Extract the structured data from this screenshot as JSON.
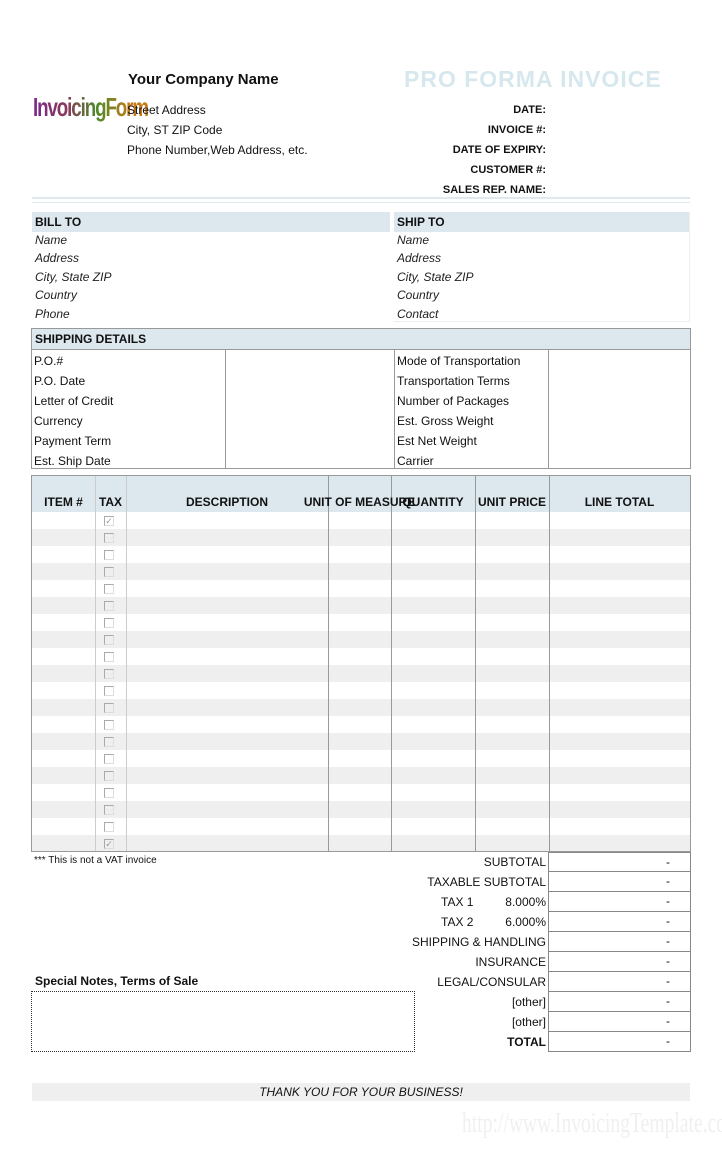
{
  "logo": {
    "text": "InvoicingForm"
  },
  "company": {
    "name": "Your Company Name",
    "street": "Street Address",
    "city": "City, ST  ZIP Code",
    "contact": "Phone Number,Web Address, etc."
  },
  "title": "PRO FORMA INVOICE",
  "meta_labels": [
    "DATE:",
    "INVOICE #:",
    "DATE OF EXPIRY:",
    "CUSTOMER #:",
    "SALES REP. NAME:"
  ],
  "bill_to": {
    "heading": "BILL TO",
    "lines": [
      "Name",
      "Address",
      "City, State ZIP",
      "Country",
      "Phone"
    ]
  },
  "ship_to": {
    "heading": "SHIP TO",
    "lines": [
      "Name",
      "Address",
      "City, State ZIP",
      "Country",
      "Contact"
    ]
  },
  "shipping": {
    "heading": "SHIPPING DETAILS",
    "left": [
      "P.O.#",
      "P.O. Date",
      "Letter of Credit",
      "Currency",
      "Payment Term",
      "Est. Ship Date"
    ],
    "right": [
      "Mode of Transportation",
      "Transportation Terms",
      "Number of Packages",
      "Est. Gross Weight",
      "Est Net Weight",
      "Carrier"
    ]
  },
  "items": {
    "headers": [
      "ITEM #",
      "TAX",
      "DESCRIPTION",
      "UNIT OF MEASURE",
      "QUANTITY",
      "UNIT PRICE",
      "LINE TOTAL"
    ],
    "tax_checked": [
      true,
      false,
      false,
      false,
      false,
      false,
      false,
      false,
      false,
      false,
      false,
      false,
      false,
      false,
      false,
      false,
      false,
      false,
      false,
      true
    ]
  },
  "vat_note": "*** This is not a VAT invoice",
  "totals": [
    {
      "label": "SUBTOTAL",
      "value": "-"
    },
    {
      "label": "TAXABLE SUBTOTAL",
      "value": "-"
    },
    {
      "label": "TAX 1",
      "rate": "8.000%",
      "value": "-"
    },
    {
      "label": "TAX 2",
      "rate": "6.000%",
      "value": "-"
    },
    {
      "label": "SHIPPING & HANDLING",
      "value": "-"
    },
    {
      "label": "INSURANCE",
      "value": "-"
    },
    {
      "label": "LEGAL/CONSULAR",
      "value": "-"
    },
    {
      "label": "[other]",
      "value": "-"
    },
    {
      "label": "[other]",
      "value": "-"
    },
    {
      "label": "TOTAL",
      "value": "-",
      "bold": true
    }
  ],
  "notes": {
    "heading": "Special Notes, Terms of Sale",
    "value": ""
  },
  "footer": "THANK YOU FOR YOUR BUSINESS!",
  "watermark": "http://www.InvoicingTemplate.com",
  "colors": {
    "header_bg": "#dce7ee",
    "title": "#d6e8ee",
    "stripe": "#efefef"
  }
}
